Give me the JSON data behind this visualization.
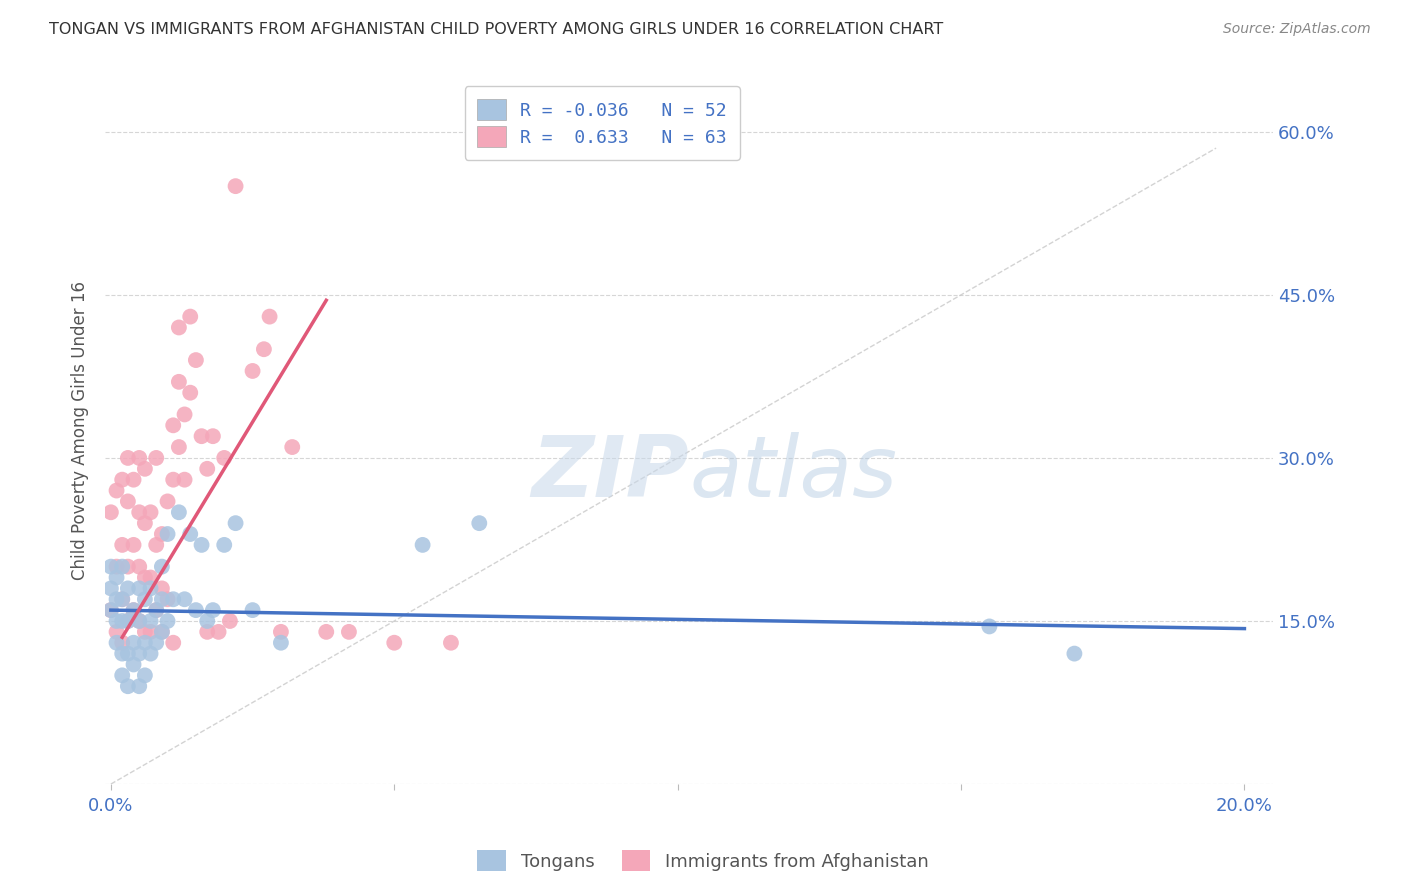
{
  "title": "TONGAN VS IMMIGRANTS FROM AFGHANISTAN CHILD POVERTY AMONG GIRLS UNDER 16 CORRELATION CHART",
  "source": "Source: ZipAtlas.com",
  "ylabel": "Child Poverty Among Girls Under 16",
  "ylim": [
    0,
    0.65
  ],
  "xlim": [
    -0.001,
    0.205
  ],
  "ytick_vals": [
    0.0,
    0.15,
    0.3,
    0.45,
    0.6
  ],
  "ytick_labels": [
    "",
    "15.0%",
    "30.0%",
    "45.0%",
    "60.0%"
  ],
  "xtick_vals": [
    0.0,
    0.05,
    0.1,
    0.15,
    0.2
  ],
  "xtick_labels": [
    "0.0%",
    "",
    "",
    "",
    "20.0%"
  ],
  "legend_line1": "R = -0.036   N = 52",
  "legend_line2": "R =  0.633   N = 63",
  "blue_scatter_x": [
    0.0,
    0.0,
    0.0,
    0.001,
    0.001,
    0.001,
    0.001,
    0.002,
    0.002,
    0.002,
    0.002,
    0.002,
    0.003,
    0.003,
    0.003,
    0.003,
    0.004,
    0.004,
    0.004,
    0.005,
    0.005,
    0.005,
    0.005,
    0.006,
    0.006,
    0.006,
    0.007,
    0.007,
    0.007,
    0.008,
    0.008,
    0.009,
    0.009,
    0.009,
    0.01,
    0.01,
    0.011,
    0.012,
    0.013,
    0.014,
    0.015,
    0.016,
    0.017,
    0.018,
    0.02,
    0.022,
    0.025,
    0.03,
    0.055,
    0.065,
    0.155,
    0.17
  ],
  "blue_scatter_y": [
    0.16,
    0.18,
    0.2,
    0.13,
    0.15,
    0.17,
    0.19,
    0.1,
    0.12,
    0.15,
    0.17,
    0.2,
    0.09,
    0.12,
    0.15,
    0.18,
    0.11,
    0.13,
    0.16,
    0.09,
    0.12,
    0.15,
    0.18,
    0.1,
    0.13,
    0.17,
    0.12,
    0.15,
    0.18,
    0.13,
    0.16,
    0.14,
    0.17,
    0.2,
    0.15,
    0.23,
    0.17,
    0.25,
    0.17,
    0.23,
    0.16,
    0.22,
    0.15,
    0.16,
    0.22,
    0.24,
    0.16,
    0.13,
    0.22,
    0.24,
    0.145,
    0.12
  ],
  "pink_scatter_x": [
    0.0,
    0.0,
    0.001,
    0.001,
    0.001,
    0.002,
    0.002,
    0.002,
    0.002,
    0.003,
    0.003,
    0.003,
    0.003,
    0.004,
    0.004,
    0.004,
    0.005,
    0.005,
    0.005,
    0.005,
    0.006,
    0.006,
    0.006,
    0.006,
    0.007,
    0.007,
    0.007,
    0.008,
    0.008,
    0.008,
    0.009,
    0.009,
    0.009,
    0.01,
    0.01,
    0.011,
    0.011,
    0.011,
    0.012,
    0.012,
    0.012,
    0.013,
    0.013,
    0.014,
    0.014,
    0.015,
    0.016,
    0.017,
    0.017,
    0.018,
    0.019,
    0.02,
    0.021,
    0.022,
    0.025,
    0.027,
    0.028,
    0.03,
    0.032,
    0.038,
    0.042,
    0.05,
    0.06
  ],
  "pink_scatter_y": [
    0.16,
    0.25,
    0.14,
    0.2,
    0.27,
    0.13,
    0.17,
    0.22,
    0.28,
    0.15,
    0.2,
    0.26,
    0.3,
    0.16,
    0.22,
    0.28,
    0.15,
    0.2,
    0.25,
    0.3,
    0.14,
    0.19,
    0.24,
    0.29,
    0.14,
    0.19,
    0.25,
    0.16,
    0.22,
    0.3,
    0.14,
    0.18,
    0.23,
    0.17,
    0.26,
    0.13,
    0.28,
    0.33,
    0.31,
    0.37,
    0.42,
    0.28,
    0.34,
    0.36,
    0.43,
    0.39,
    0.32,
    0.29,
    0.14,
    0.32,
    0.14,
    0.3,
    0.15,
    0.55,
    0.38,
    0.4,
    0.43,
    0.14,
    0.31,
    0.14,
    0.14,
    0.13,
    0.13
  ],
  "blue_line_x": [
    0.0,
    0.2
  ],
  "blue_line_y": [
    0.16,
    0.143
  ],
  "pink_line_x": [
    0.002,
    0.038
  ],
  "pink_line_y": [
    0.135,
    0.445
  ],
  "diag_line_x": [
    0.0,
    0.195
  ],
  "diag_line_y": [
    0.0,
    0.585
  ],
  "watermark_zip": "ZIP",
  "watermark_atlas": "atlas",
  "scatter_size": 130,
  "blue_color": "#a8c4e0",
  "pink_color": "#f4a7b9",
  "blue_line_color": "#4472c4",
  "pink_line_color": "#e05878",
  "grid_color": "#cccccc",
  "bg_color": "#ffffff",
  "title_color": "#333333",
  "tick_color": "#4472c4",
  "source_color": "#888888"
}
